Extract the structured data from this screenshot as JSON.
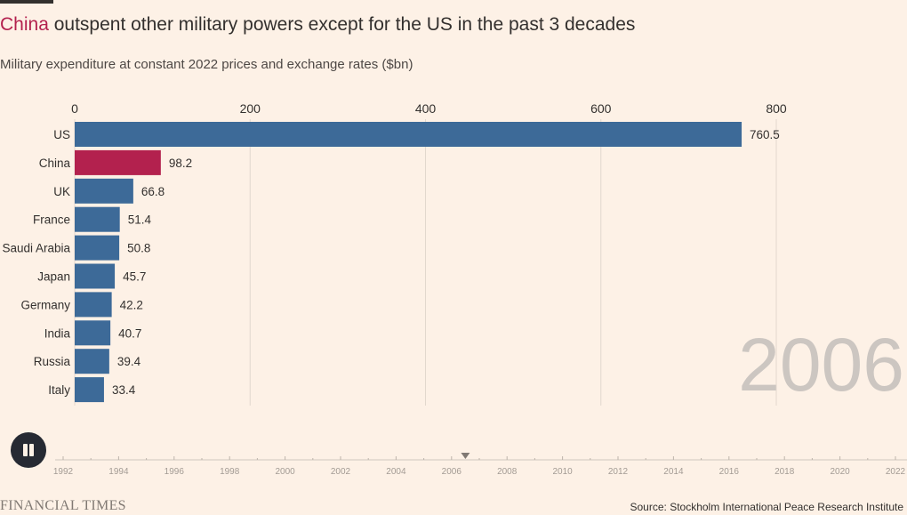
{
  "header": {
    "headline_accent": "China",
    "headline_rest": " outspent other military powers except for the US in the past 3 decades",
    "subtitle": "Military expenditure at constant 2022 prices and exchange rates ($bn)"
  },
  "chart_data": {
    "type": "bar",
    "orientation": "horizontal",
    "categories": [
      "US",
      "China",
      "UK",
      "France",
      "Saudi Arabia",
      "Japan",
      "Germany",
      "India",
      "Russia",
      "Italy"
    ],
    "values": [
      760.5,
      98.2,
      66.8,
      51.4,
      50.8,
      45.7,
      42.2,
      40.7,
      39.4,
      33.4
    ],
    "value_labels": [
      "760.5",
      "98.2",
      "66.8",
      "51.4",
      "50.8",
      "45.7",
      "42.2",
      "40.7",
      "39.4",
      "33.4"
    ],
    "highlight": "China",
    "xlim": [
      0,
      800
    ],
    "xticks": [
      "0",
      "200",
      "400",
      "600",
      "800"
    ],
    "grid": true,
    "current_year": "2006",
    "colors": {
      "bar": "#3d6a98",
      "highlight": "#b3214e",
      "grid": "#e2d8cd",
      "year": "#ccc6c1"
    }
  },
  "timeline": {
    "years": [
      "1992",
      "1994",
      "1996",
      "1998",
      "2000",
      "2002",
      "2004",
      "2006",
      "2008",
      "2010",
      "2012",
      "2014",
      "2016",
      "2018",
      "2020",
      "2022"
    ],
    "current": 2006.5,
    "range": [
      1992,
      2022
    ]
  },
  "controls": {
    "button_icon": "pause-icon"
  },
  "footer": {
    "brand": "FINANCIAL TIMES",
    "source": "Source: Stockholm International Peace Research Institute"
  }
}
